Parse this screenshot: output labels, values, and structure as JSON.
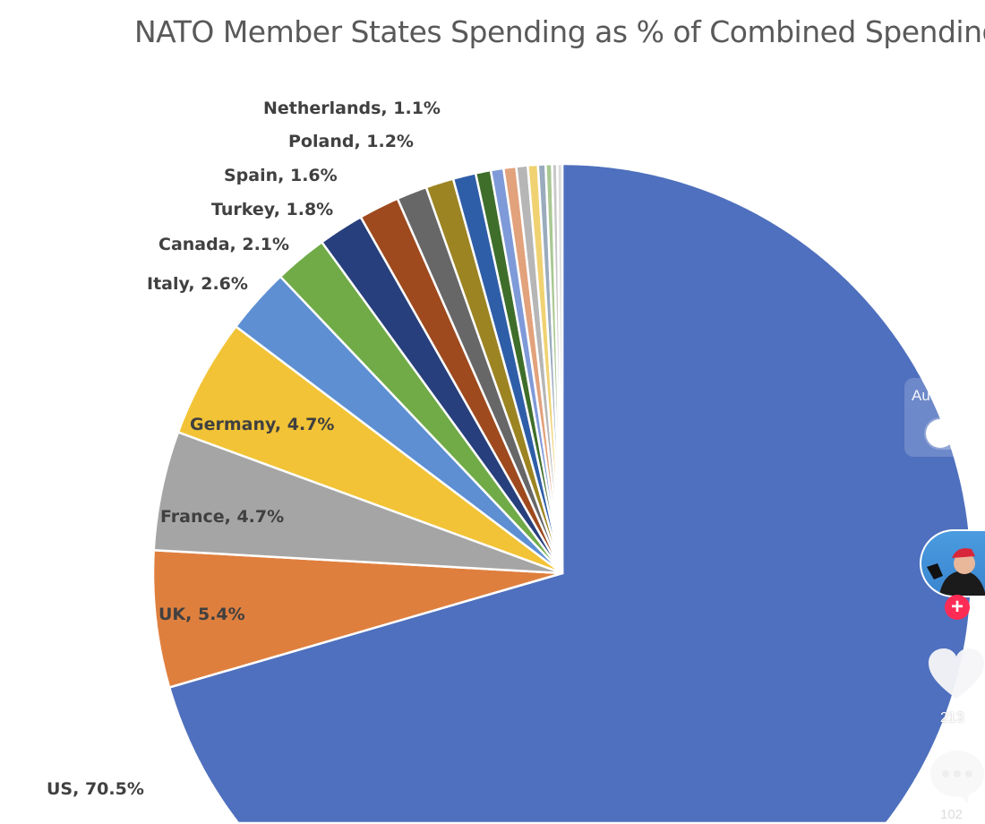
{
  "chart_data": {
    "type": "pie",
    "title": "NATO Member States Spending as % of Combined Spending",
    "start_angle": "top",
    "direction": "clockwise",
    "slices": [
      {
        "name": "US",
        "value": 70.5,
        "label": "US, 70.5%",
        "color": "#4f70be"
      },
      {
        "name": "UK",
        "value": 5.4,
        "label": "UK, 5.4%",
        "color": "#df7f3e"
      },
      {
        "name": "France",
        "value": 4.7,
        "label": "France, 4.7%",
        "color": "#a5a5a5"
      },
      {
        "name": "Germany",
        "value": 4.7,
        "label": "Germany, 4.7%",
        "color": "#f2c336"
      },
      {
        "name": "Italy",
        "value": 2.6,
        "label": "Italy, 2.6%",
        "color": "#5d8fd2"
      },
      {
        "name": "Canada",
        "value": 2.1,
        "label": "Canada, 2.1%",
        "color": "#70ab47"
      },
      {
        "name": "Turkey",
        "value": 1.8,
        "label": "Turkey, 1.8%",
        "color": "#273f7c"
      },
      {
        "name": "Spain",
        "value": 1.6,
        "label": "Spain, 1.6%",
        "color": "#9e4a1e"
      },
      {
        "name": "Poland",
        "value": 1.2,
        "label": "Poland, 1.2%",
        "color": "#676767"
      },
      {
        "name": "Netherlands",
        "value": 1.1,
        "label": "Netherlands, 1.1%",
        "color": "#9c8422"
      },
      {
        "name": "",
        "value": 0.9,
        "color": "#2f5ea8"
      },
      {
        "name": "",
        "value": 0.6,
        "color": "#3f6e2b"
      },
      {
        "name": "",
        "value": 0.5,
        "color": "#7f9ad8"
      },
      {
        "name": "",
        "value": 0.5,
        "color": "#e2a27c"
      },
      {
        "name": "",
        "value": 0.45,
        "color": "#b6b6b6"
      },
      {
        "name": "",
        "value": 0.4,
        "color": "#f0d272"
      },
      {
        "name": "",
        "value": 0.3,
        "color": "#9aabbd"
      },
      {
        "name": "",
        "value": 0.25,
        "color": "#a9c892"
      },
      {
        "name": "",
        "value": 0.2,
        "color": "#c8c8c8"
      },
      {
        "name": "",
        "value": 0.2,
        "color": "#dcdcdc"
      }
    ]
  },
  "overlay": {
    "auto_scroll_label": "Auto scroll",
    "auto_scroll_on": false,
    "likes": "213",
    "comments": "102",
    "accent": "#fe2c55"
  }
}
